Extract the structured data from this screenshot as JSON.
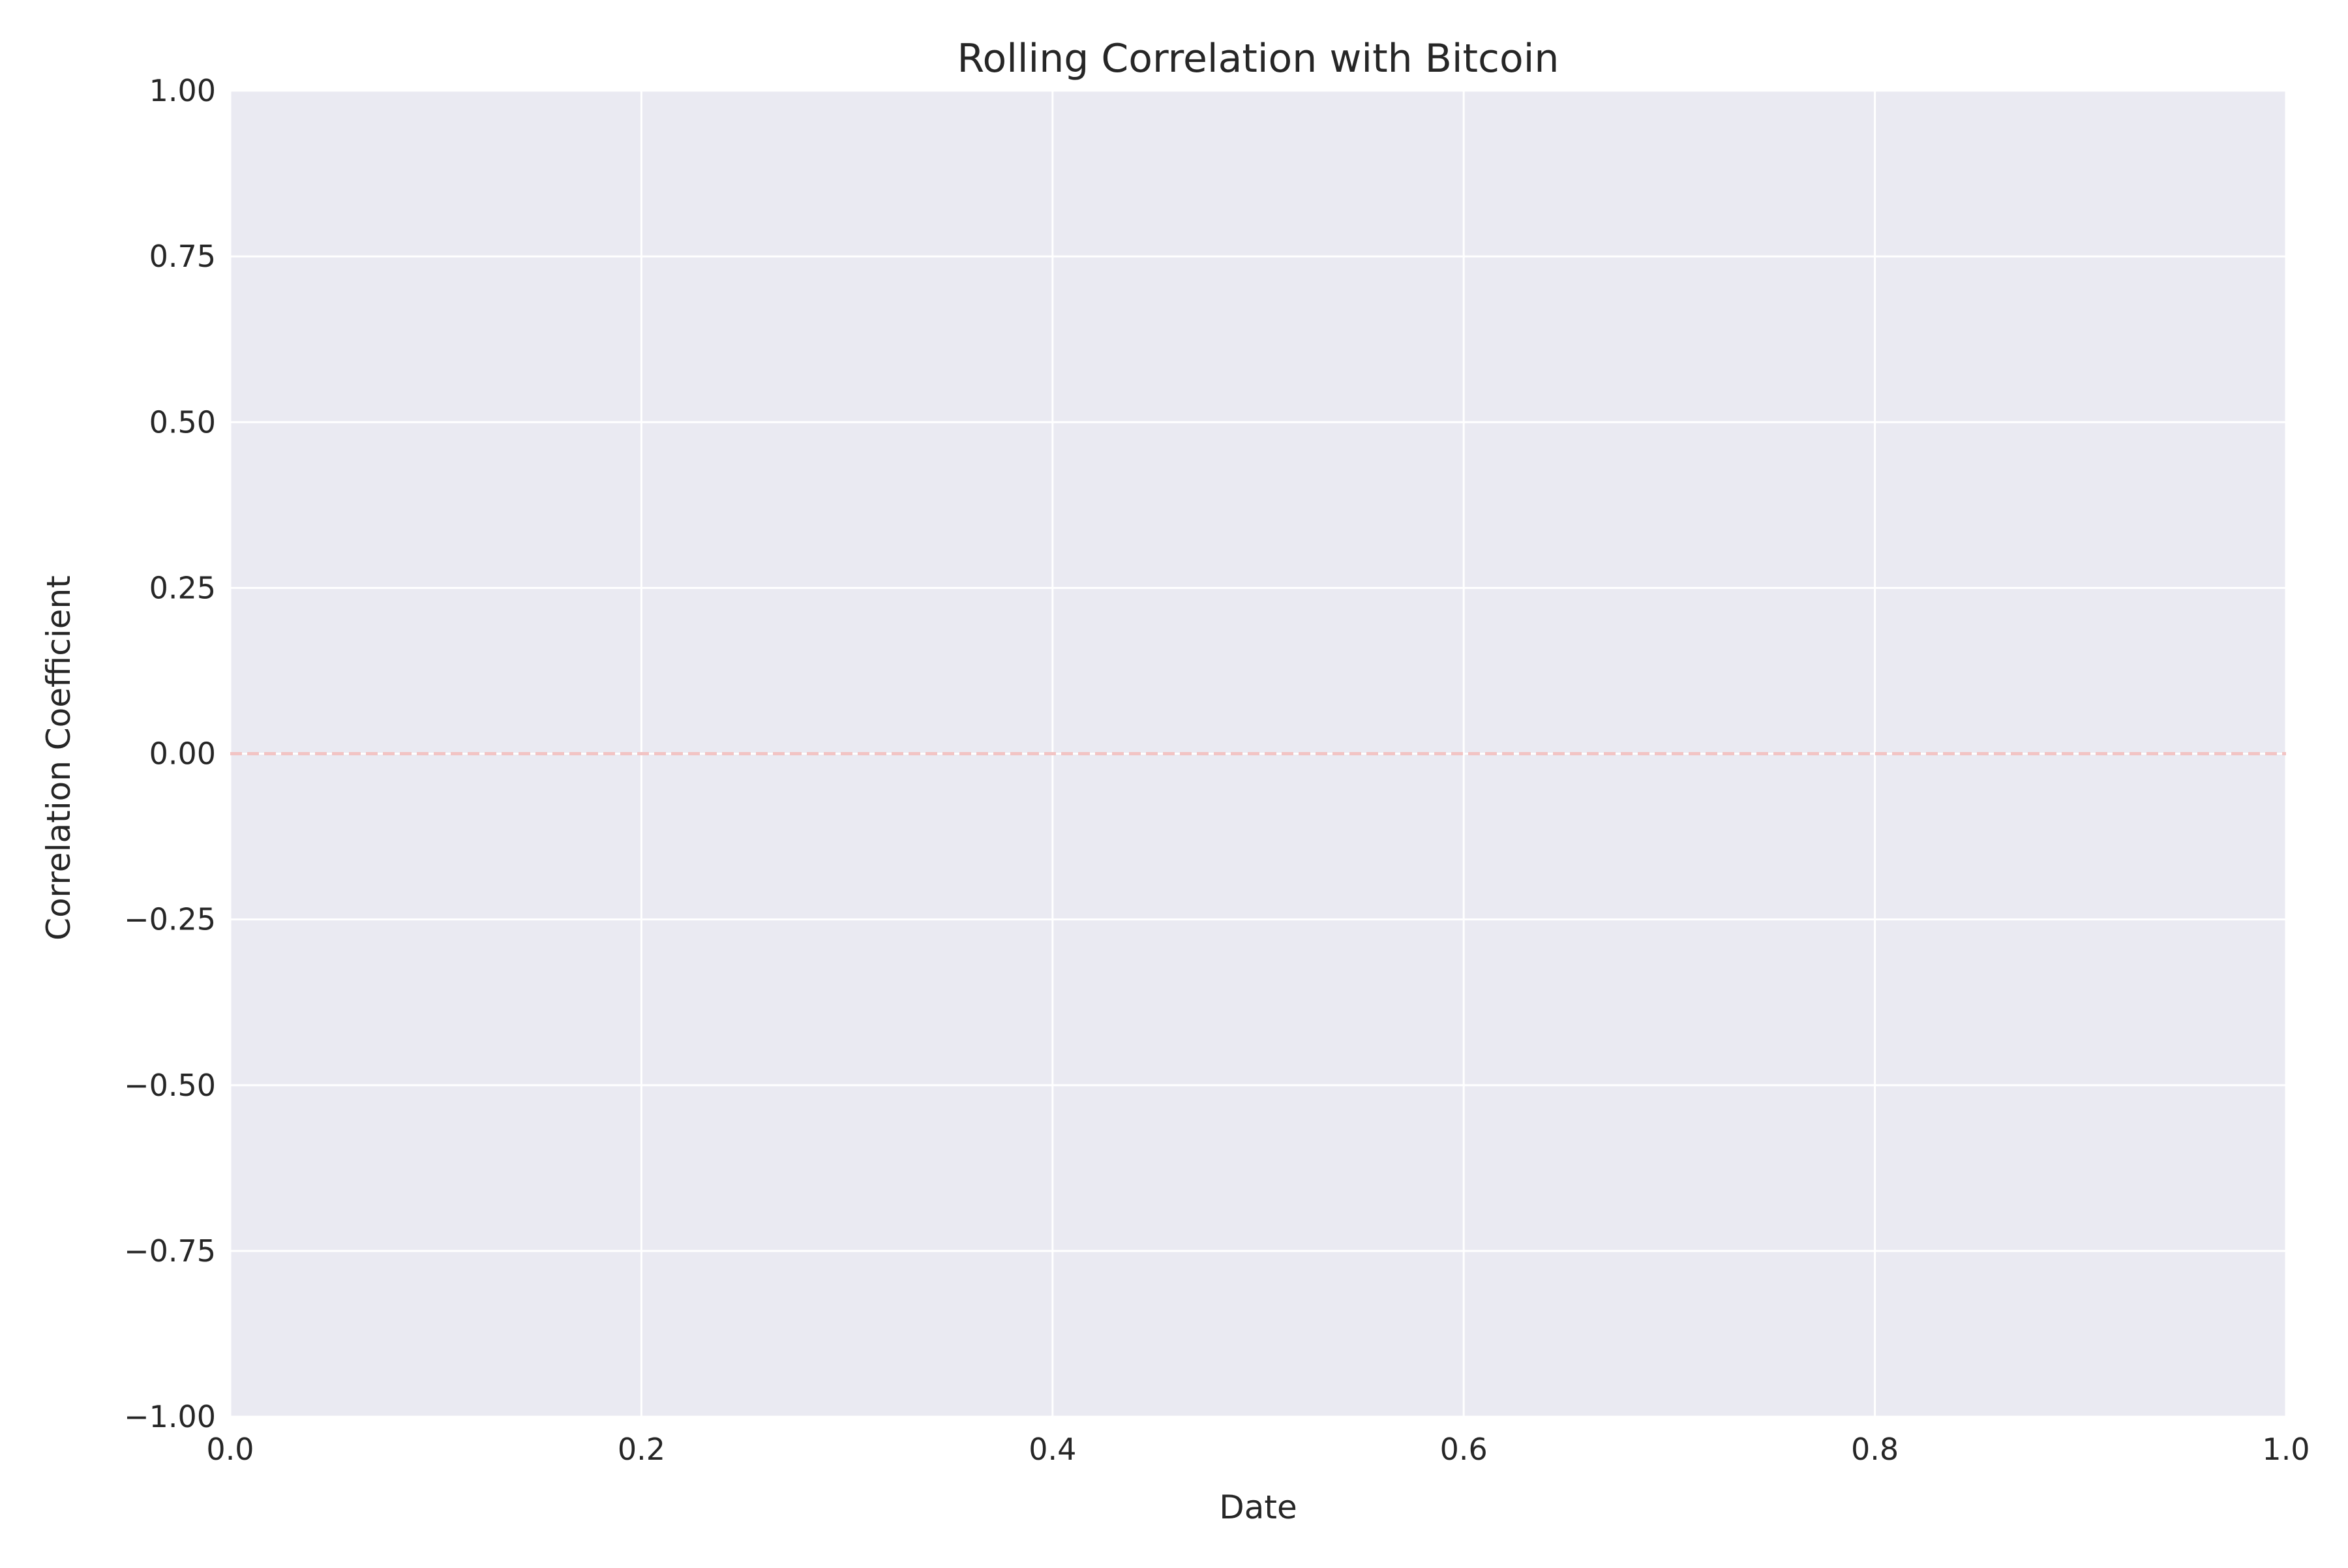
{
  "chart_data": {
    "type": "line",
    "title": "Rolling Correlation with Bitcoin",
    "xlabel": "Date",
    "ylabel": "Correlation Coefficient",
    "xlim": [
      0.0,
      1.0
    ],
    "ylim": [
      -1.0,
      1.0
    ],
    "x_ticks": [
      "0.0",
      "0.2",
      "0.4",
      "0.6",
      "0.8",
      "1.0"
    ],
    "y_ticks": [
      "−1.00",
      "−0.75",
      "−0.50",
      "−0.25",
      "0.00",
      "0.25",
      "0.50",
      "0.75",
      "1.00"
    ],
    "grid": true,
    "legend": "none",
    "series": [],
    "reference_lines": [
      {
        "orientation": "horizontal",
        "y": 0.0,
        "style": "dashed",
        "color": "#f2c4c4"
      }
    ],
    "colors": {
      "plot_background": "#eaeaf2",
      "grid": "#ffffff",
      "reference_line": "#f2c4c4"
    }
  }
}
